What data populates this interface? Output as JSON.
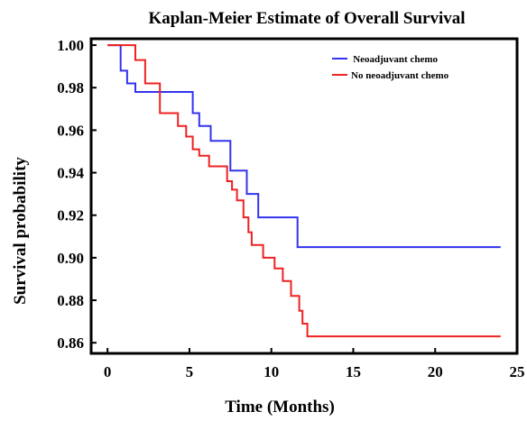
{
  "chart_data": {
    "type": "line",
    "title": "Kaplan-Meier Estimate of Overall Survival",
    "xlabel": "Time (Months)",
    "ylabel": "Survival probability",
    "xlim": [
      -1,
      25
    ],
    "ylim": [
      0.855,
      1.003
    ],
    "xticks": [
      0,
      5,
      10,
      15,
      20,
      25
    ],
    "yticks": [
      0.86,
      0.88,
      0.9,
      0.92,
      0.94,
      0.96,
      0.98,
      1.0
    ],
    "xtick_labels": [
      "0",
      "5",
      "10",
      "15",
      "20",
      "25"
    ],
    "ytick_labels": [
      "0.86",
      "0.88",
      "0.90",
      "0.92",
      "0.94",
      "0.96",
      "0.98",
      "1.00"
    ],
    "grid": false,
    "legend_position": "top-right",
    "step": true,
    "series": [
      {
        "name": "Neoadjuvant chemo",
        "legend_label": " Neoadjuvant chemo",
        "color": "#3333ee",
        "x": [
          0,
          0.8,
          1.2,
          1.7,
          5.2,
          5.6,
          6.3,
          7.5,
          8.5,
          9.2,
          11.6,
          24
        ],
        "y": [
          1.0,
          0.988,
          0.982,
          0.978,
          0.968,
          0.962,
          0.955,
          0.941,
          0.93,
          0.919,
          0.905,
          0.905
        ]
      },
      {
        "name": "No neoadjuvant chemo",
        "legend_label": "No neoadjuvant chemo",
        "color": "#ee2222",
        "x": [
          0,
          1.7,
          2.3,
          3.2,
          4.3,
          4.8,
          5.2,
          5.6,
          6.2,
          7.3,
          7.6,
          7.9,
          8.3,
          8.6,
          8.8,
          9.5,
          10.2,
          10.7,
          11.2,
          11.7,
          11.9,
          12.2,
          24
        ],
        "y": [
          1.0,
          0.993,
          0.982,
          0.968,
          0.962,
          0.957,
          0.951,
          0.948,
          0.943,
          0.936,
          0.932,
          0.927,
          0.919,
          0.912,
          0.906,
          0.9,
          0.895,
          0.889,
          0.882,
          0.875,
          0.869,
          0.863,
          0.863
        ]
      }
    ]
  }
}
